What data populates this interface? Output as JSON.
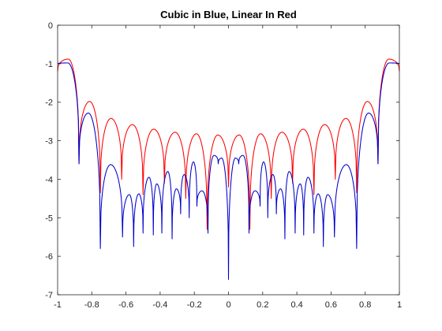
{
  "chart_data": {
    "type": "line",
    "title": "Cubic in Blue, Linear In Red",
    "xlabel": "",
    "ylabel": "",
    "xlim": [
      -1,
      1
    ],
    "ylim": [
      -7,
      0
    ],
    "xticks": [
      -1,
      -0.8,
      -0.6,
      -0.4,
      -0.2,
      0,
      0.2,
      0.4,
      0.6,
      0.8,
      1
    ],
    "xtick_labels": [
      "-1",
      "-0.8",
      "-0.6",
      "-0.4",
      "-0.2",
      "0",
      "0.2",
      "0.4",
      "0.6",
      "0.8",
      "1"
    ],
    "yticks": [
      0,
      -1,
      -2,
      -3,
      -4,
      -5,
      -6,
      -7
    ],
    "ytick_labels": [
      "0",
      "-1",
      "-2",
      "-3",
      "-4",
      "-5",
      "-6",
      "-7"
    ],
    "grid": false,
    "legend": "none",
    "series": [
      {
        "color": "#ff0000",
        "peaks": [
          {
            "x": -0.9375,
            "y": -0.88
          },
          {
            "x": -0.8125,
            "y": -1.98
          },
          {
            "x": -0.6875,
            "y": -2.42
          },
          {
            "x": -0.5625,
            "y": -2.58
          },
          {
            "x": -0.4375,
            "y": -2.7
          },
          {
            "x": -0.3125,
            "y": -2.78
          },
          {
            "x": -0.1875,
            "y": -2.82
          },
          {
            "x": -0.0625,
            "y": -2.85
          },
          {
            "x": 0.0625,
            "y": -2.85
          },
          {
            "x": 0.1875,
            "y": -2.82
          },
          {
            "x": 0.3125,
            "y": -2.78
          },
          {
            "x": 0.4375,
            "y": -2.7
          },
          {
            "x": 0.5625,
            "y": -2.58
          },
          {
            "x": 0.6875,
            "y": -2.42
          },
          {
            "x": 0.8125,
            "y": -1.98
          },
          {
            "x": 0.9375,
            "y": -0.88
          }
        ],
        "endpoints": {
          "left": -1.2,
          "right": -1.2
        },
        "nulls": [
          {
            "x": -0.875,
            "y": -3.6
          },
          {
            "x": -0.75,
            "y": -4.35
          },
          {
            "x": -0.625,
            "y": -4.0
          },
          {
            "x": -0.5,
            "y": -4.4
          },
          {
            "x": -0.375,
            "y": -4.1
          },
          {
            "x": -0.25,
            "y": -4.5
          },
          {
            "x": -0.125,
            "y": -5.3
          },
          {
            "x": 0,
            "y": -4.2
          },
          {
            "x": 0.125,
            "y": -5.3
          },
          {
            "x": 0.25,
            "y": -4.5
          },
          {
            "x": 0.375,
            "y": -4.1
          },
          {
            "x": 0.5,
            "y": -4.4
          },
          {
            "x": 0.625,
            "y": -4.0
          },
          {
            "x": 0.75,
            "y": -4.35
          },
          {
            "x": 0.875,
            "y": -3.6
          }
        ]
      },
      {
        "color": "#0000cc",
        "peaks": [
          {
            "x": -0.94,
            "y": -0.98
          },
          {
            "x": -0.82,
            "y": -2.28
          },
          {
            "x": -0.69,
            "y": -3.62
          },
          {
            "x": -0.58,
            "y": -4.4
          },
          {
            "x": -0.525,
            "y": -4.38
          },
          {
            "x": -0.465,
            "y": -3.95
          },
          {
            "x": -0.42,
            "y": -4.12
          },
          {
            "x": -0.355,
            "y": -3.8
          },
          {
            "x": -0.305,
            "y": -4.25
          },
          {
            "x": -0.26,
            "y": -3.88
          },
          {
            "x": -0.205,
            "y": -3.55
          },
          {
            "x": -0.155,
            "y": -4.3
          },
          {
            "x": -0.085,
            "y": -3.38
          },
          {
            "x": -0.04,
            "y": -3.45
          },
          {
            "x": 0.04,
            "y": -3.45
          },
          {
            "x": 0.085,
            "y": -3.38
          },
          {
            "x": 0.155,
            "y": -4.3
          },
          {
            "x": 0.205,
            "y": -3.55
          },
          {
            "x": 0.26,
            "y": -3.88
          },
          {
            "x": 0.305,
            "y": -4.25
          },
          {
            "x": 0.355,
            "y": -3.8
          },
          {
            "x": 0.42,
            "y": -4.12
          },
          {
            "x": 0.465,
            "y": -3.95
          },
          {
            "x": 0.525,
            "y": -4.38
          },
          {
            "x": 0.58,
            "y": -4.4
          },
          {
            "x": 0.69,
            "y": -3.62
          },
          {
            "x": 0.82,
            "y": -2.28
          },
          {
            "x": 0.94,
            "y": -0.98
          }
        ],
        "endpoints": {
          "left": -1.0,
          "right": -1.0
        },
        "nulls": [
          {
            "x": -0.875,
            "y": -3.6
          },
          {
            "x": -0.75,
            "y": -5.8
          },
          {
            "x": -0.62,
            "y": -5.5
          },
          {
            "x": -0.555,
            "y": -5.75
          },
          {
            "x": -0.5,
            "y": -5.4
          },
          {
            "x": -0.44,
            "y": -5.45
          },
          {
            "x": -0.39,
            "y": -5.4
          },
          {
            "x": -0.33,
            "y": -5.55
          },
          {
            "x": -0.28,
            "y": -4.9
          },
          {
            "x": -0.23,
            "y": -5.0
          },
          {
            "x": -0.185,
            "y": -4.7
          },
          {
            "x": -0.12,
            "y": -5.4
          },
          {
            "x": -0.06,
            "y": -3.6
          },
          {
            "x": 0,
            "y": -6.6
          },
          {
            "x": 0.06,
            "y": -3.6
          },
          {
            "x": 0.12,
            "y": -5.4
          },
          {
            "x": 0.185,
            "y": -4.7
          },
          {
            "x": 0.23,
            "y": -5.0
          },
          {
            "x": 0.28,
            "y": -4.9
          },
          {
            "x": 0.33,
            "y": -5.55
          },
          {
            "x": 0.39,
            "y": -5.4
          },
          {
            "x": 0.44,
            "y": -5.45
          },
          {
            "x": 0.5,
            "y": -5.4
          },
          {
            "x": 0.555,
            "y": -5.75
          },
          {
            "x": 0.62,
            "y": -5.5
          },
          {
            "x": 0.75,
            "y": -5.8
          },
          {
            "x": 0.875,
            "y": -3.6
          }
        ]
      }
    ]
  }
}
